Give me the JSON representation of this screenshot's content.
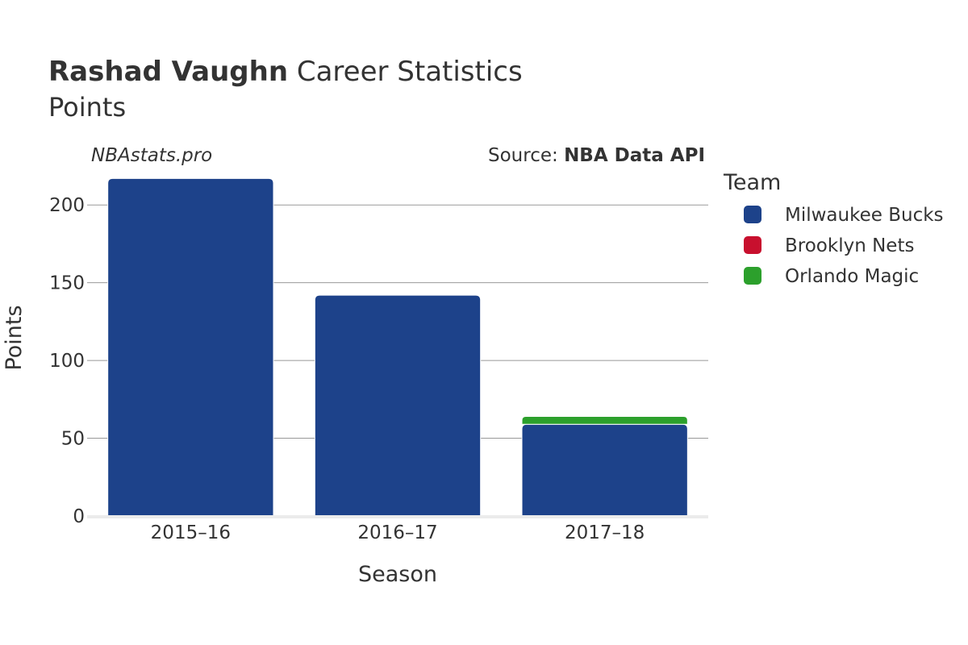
{
  "chart_data": {
    "type": "bar",
    "stacked": true,
    "title_bold": "Rashad Vaughn",
    "title_rest": " Career Statistics",
    "subtitle": "Points",
    "watermark": "NBAstats.pro",
    "source_prefix": "Source: ",
    "source_name": "NBA Data API",
    "xlabel": "Season",
    "ylabel": "Points",
    "ylim": [
      0,
      225
    ],
    "yticks": [
      0,
      50,
      100,
      150,
      200
    ],
    "categories": [
      "2015–16",
      "2016–17",
      "2017–18"
    ],
    "series": [
      {
        "name": "Milwaukee Bucks",
        "color": "#1d428a",
        "values": [
          217,
          142,
          59
        ]
      },
      {
        "name": "Brooklyn Nets",
        "color": "#c8102e",
        "values": [
          0,
          0,
          0
        ]
      },
      {
        "name": "Orlando Magic",
        "color": "#2ca02c",
        "values": [
          0,
          0,
          5
        ]
      }
    ],
    "legend_title": "Team",
    "legend_position": "right",
    "grid": true
  }
}
